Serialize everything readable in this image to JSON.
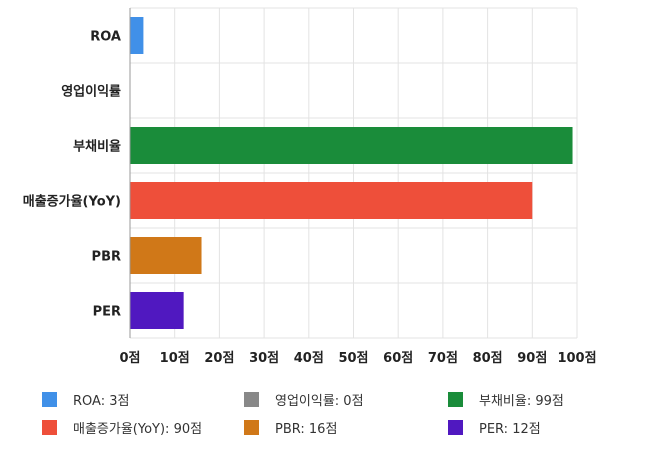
{
  "chart_data": {
    "type": "bar",
    "orientation": "horizontal",
    "categories": [
      "ROA",
      "영업이익률",
      "부채비율",
      "매출증가율(YoY)",
      "PBR",
      "PER"
    ],
    "values": [
      3,
      0,
      99,
      90,
      16,
      12
    ],
    "colors": [
      "#4090E8",
      "#888888",
      "#1A8C3A",
      "#EE4F3A",
      "#D07818",
      "#5018C0"
    ],
    "xlim": [
      0,
      100
    ],
    "xticks": [
      0,
      10,
      20,
      30,
      40,
      50,
      60,
      70,
      80,
      90,
      100
    ],
    "tick_suffix": "점",
    "grid": true,
    "legend_position": "bottom",
    "legend": [
      {
        "label": "ROA: 3점",
        "color": "#4090E8"
      },
      {
        "label": "영업이익률: 0점",
        "color": "#888888"
      },
      {
        "label": "부채비율: 99점",
        "color": "#1A8C3A"
      },
      {
        "label": "매출증가율(YoY): 90점",
        "color": "#EE4F3A"
      },
      {
        "label": "PBR: 16점",
        "color": "#D07818"
      },
      {
        "label": "PER: 12점",
        "color": "#5018C0"
      }
    ]
  }
}
